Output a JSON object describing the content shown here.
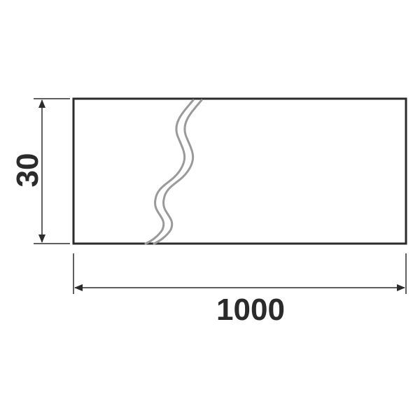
{
  "diagram": {
    "height_label": "30",
    "width_label": "1000"
  },
  "colors": {
    "outline": "#2b2b2b",
    "dimension": "#2b2b2b",
    "break_line": "#9a9a9a",
    "background": "#ffffff"
  },
  "icons": {
    "break": "wavy-break-icon",
    "arrow": "dimension-arrow-icon"
  }
}
